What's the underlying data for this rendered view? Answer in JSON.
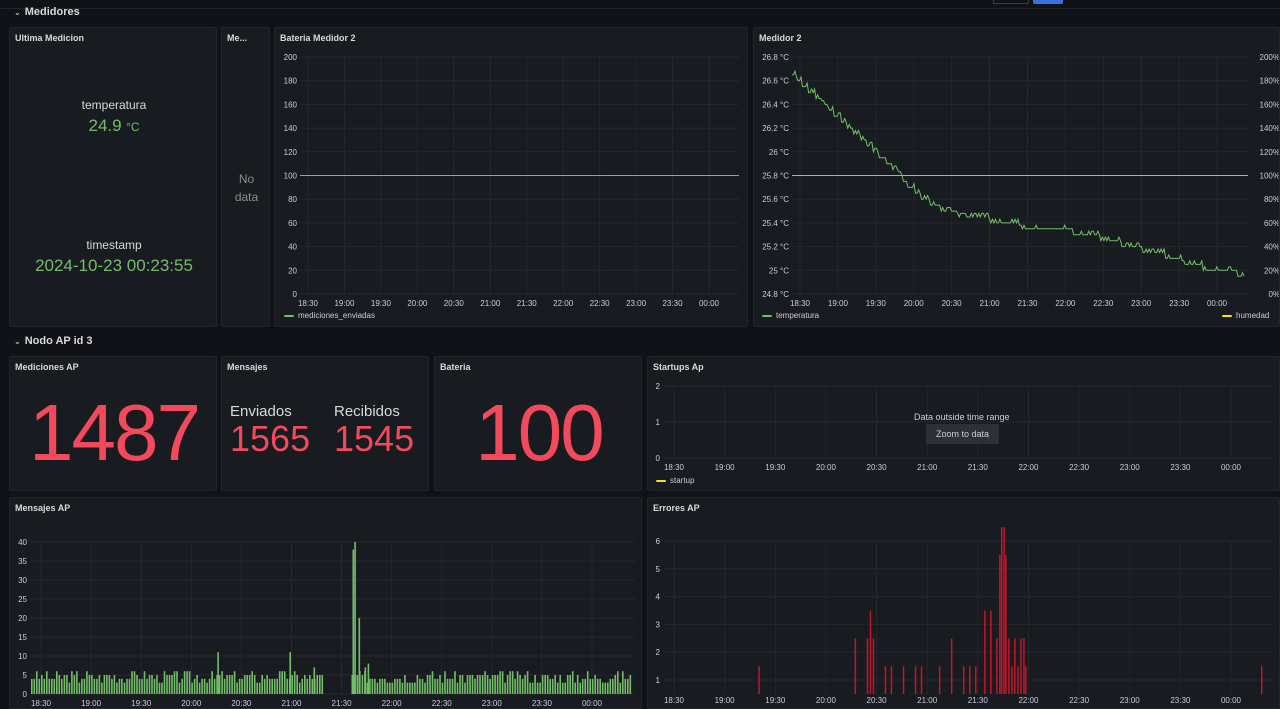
{
  "rows": {
    "medidores": "Medidores",
    "nodo_ap": "Nodo AP id 3"
  },
  "ultima_medicion": {
    "title": "Ultima Medicion",
    "temp_label": "temperatura",
    "temp_value": "24.9",
    "temp_unit": "°C",
    "ts_label": "timestamp",
    "ts_value": "2024-10-23 00:23:55"
  },
  "me_panel": {
    "title": "Me...",
    "nodata1": "No",
    "nodata2": "data"
  },
  "bateria_medidor": {
    "title": "Bateria Medidor 2",
    "legend": "mediciones_enviadas"
  },
  "medidor2": {
    "title": "Medidor 2",
    "legend_left": "temperatura",
    "legend_right": "humedad"
  },
  "mediciones_ap": {
    "title": "Mediciones AP",
    "value": "1487"
  },
  "mensajes": {
    "title": "Mensajes",
    "enviados_label": "Enviados",
    "enviados_value": "1565",
    "recibidos_label": "Recibidos",
    "recibidos_value": "1545"
  },
  "bateria": {
    "title": "Bateria",
    "value": "100"
  },
  "startups": {
    "title": "Startups Ap",
    "message": "Data outside time range",
    "zoom_label": "Zoom to data",
    "legend": "startup"
  },
  "mensajes_ap": {
    "title": "Mensajes AP"
  },
  "errores_ap": {
    "title": "Errores AP"
  },
  "colors": {
    "green": "#73bf69",
    "red": "#f2495c",
    "yellow": "#fade2a",
    "darkred": "#c4162a"
  },
  "chart_data": [
    {
      "type": "line",
      "title": "Bateria Medidor 2",
      "x_ticks": [
        "18:30",
        "19:00",
        "19:30",
        "20:00",
        "20:30",
        "21:00",
        "21:30",
        "22:00",
        "22:30",
        "23:00",
        "23:30",
        "00:00"
      ],
      "y_ticks": [
        "200",
        "180",
        "160",
        "140",
        "120",
        "100",
        "80",
        "60",
        "40",
        "20",
        "0"
      ],
      "ylim": [
        0,
        200
      ],
      "series": [
        {
          "name": "mediciones_enviadas",
          "values": [
            100,
            100
          ]
        }
      ]
    },
    {
      "type": "line",
      "title": "Medidor 2",
      "x_ticks": [
        "18:30",
        "19:00",
        "19:30",
        "20:00",
        "20:30",
        "21:00",
        "21:30",
        "22:00",
        "22:30",
        "23:00",
        "23:30",
        "00:00"
      ],
      "y_ticks_left": [
        "26.8 °C",
        "26.6 °C",
        "26.4 °C",
        "26.2 °C",
        "26 °C",
        "25.8 °C",
        "25.6 °C",
        "25.4 °C",
        "25.2 °C",
        "25 °C",
        "24.8 °C"
      ],
      "y_ticks_right": [
        "200%",
        "180%",
        "160%",
        "140%",
        "120%",
        "100%",
        "80%",
        "60%",
        "40%",
        "20%",
        "0%"
      ],
      "ylim_left": [
        24.7,
        26.8
      ],
      "ylim_right": [
        0,
        200
      ],
      "series": [
        {
          "name": "temperatura",
          "values": [
            26.65,
            26.55,
            26.45,
            26.35,
            26.25,
            26.15,
            26.05,
            25.95,
            25.85,
            25.72,
            25.62,
            25.55,
            25.5,
            25.47,
            25.45,
            25.43,
            25.4,
            25.38,
            25.37,
            25.36,
            25.35,
            25.34,
            25.32,
            25.3,
            25.27,
            25.24,
            25.21,
            25.18,
            25.15,
            25.12,
            25.08,
            25.05,
            25.02,
            25.0,
            24.98,
            24.97
          ]
        },
        {
          "name": "humedad",
          "values": [
            100,
            100
          ]
        }
      ]
    },
    {
      "type": "line",
      "title": "Startups Ap",
      "x_ticks": [
        "18:30",
        "19:00",
        "19:30",
        "20:00",
        "20:30",
        "21:00",
        "21:30",
        "22:00",
        "22:30",
        "23:00",
        "23:30",
        "00:00"
      ],
      "y_ticks": [
        "2",
        "1",
        "0"
      ],
      "ylim": [
        0,
        2
      ],
      "series": [
        {
          "name": "startup",
          "values": []
        }
      ]
    },
    {
      "type": "bar",
      "title": "Mensajes AP",
      "x_ticks": [
        "18:30",
        "19:00",
        "19:30",
        "20:00",
        "20:30",
        "21:00",
        "21:30",
        "22:00",
        "22:30",
        "23:00",
        "23:30",
        "00:00"
      ],
      "y_ticks": [
        "40",
        "35",
        "30",
        "25",
        "20",
        "15",
        "10",
        "5",
        "0"
      ],
      "ylim": [
        0,
        42
      ],
      "spikes": [
        [
          0.31,
          11
        ],
        [
          0.43,
          11
        ],
        [
          0.47,
          7
        ],
        [
          0.535,
          38
        ],
        [
          0.538,
          40
        ],
        [
          0.545,
          20
        ],
        [
          0.555,
          7
        ],
        [
          0.56,
          8
        ]
      ],
      "gap": [
        0.485,
        0.53
      ],
      "base_min": 3,
      "base_max": 6
    },
    {
      "type": "bar",
      "title": "Errores AP",
      "x_ticks": [
        "18:30",
        "19:00",
        "19:30",
        "20:00",
        "20:30",
        "21:00",
        "21:30",
        "22:00",
        "22:30",
        "23:00",
        "23:30",
        "00:00"
      ],
      "y_ticks": [
        "6",
        "5",
        "4",
        "3",
        "2",
        "1"
      ],
      "ylim": [
        0,
        6.3
      ],
      "bars": [
        [
          0.15,
          1
        ],
        [
          0.31,
          2
        ],
        [
          0.33,
          2
        ],
        [
          0.335,
          3
        ],
        [
          0.34,
          2
        ],
        [
          0.36,
          1
        ],
        [
          0.37,
          1
        ],
        [
          0.39,
          1
        ],
        [
          0.41,
          1
        ],
        [
          0.42,
          1
        ],
        [
          0.45,
          1
        ],
        [
          0.47,
          2
        ],
        [
          0.49,
          1
        ],
        [
          0.5,
          1
        ],
        [
          0.51,
          1
        ],
        [
          0.525,
          3
        ],
        [
          0.535,
          3
        ],
        [
          0.545,
          2
        ],
        [
          0.55,
          5
        ],
        [
          0.553,
          6
        ],
        [
          0.557,
          6
        ],
        [
          0.56,
          5
        ],
        [
          0.565,
          2
        ],
        [
          0.57,
          1
        ],
        [
          0.575,
          2
        ],
        [
          0.58,
          1
        ],
        [
          0.585,
          2
        ],
        [
          0.59,
          2
        ],
        [
          0.593,
          1
        ],
        [
          0.985,
          1
        ]
      ]
    }
  ]
}
